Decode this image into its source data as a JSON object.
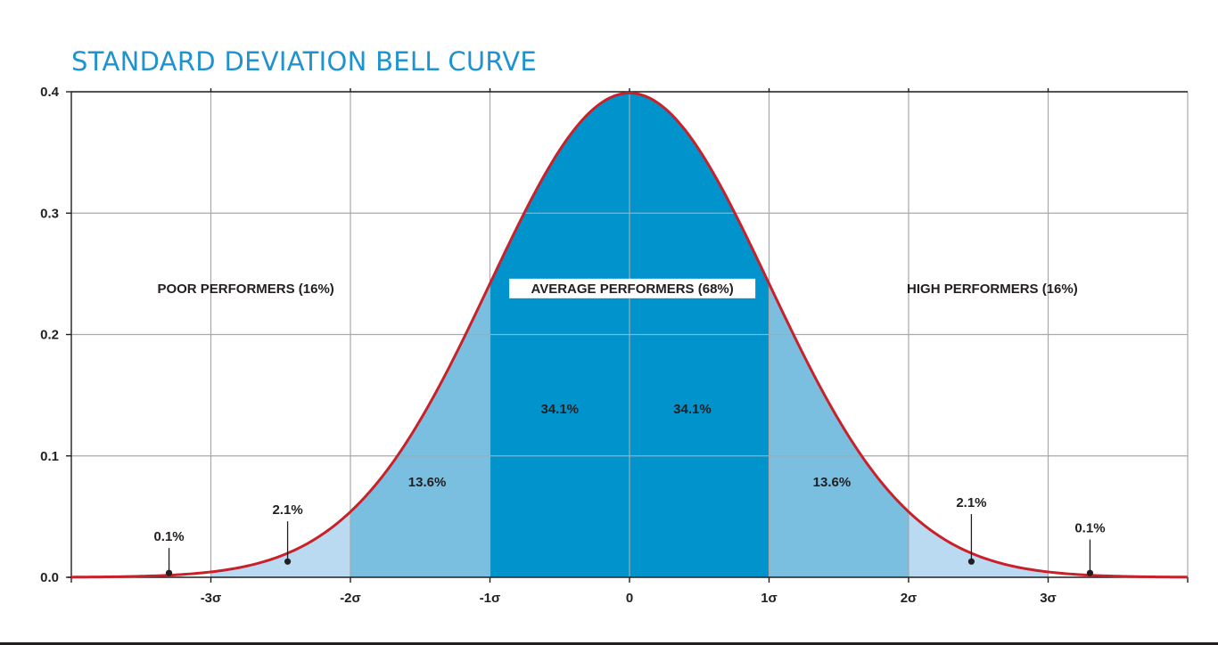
{
  "title": "STANDARD DEVIATION BELL CURVE",
  "colors": {
    "title": "#1e93cf",
    "center": "#0093cc",
    "one_to_two": "#7abee0",
    "two_to_three": "#b9daf0",
    "curve": "#c9212a",
    "grid": "#a7a9ac",
    "axis": "#231f20"
  },
  "chart_data": {
    "type": "area",
    "title": "STANDARD DEVIATION BELL CURVE",
    "xlabel": "",
    "ylabel": "",
    "distribution": "standard normal",
    "xlim": [
      -4,
      4
    ],
    "ylim": [
      0,
      0.4
    ],
    "x_ticks": [
      {
        "value": -3,
        "label": "-3σ"
      },
      {
        "value": -2,
        "label": "-2σ"
      },
      {
        "value": -1,
        "label": "-1σ"
      },
      {
        "value": 0,
        "label": "0"
      },
      {
        "value": 1,
        "label": "1σ"
      },
      {
        "value": 2,
        "label": "2σ"
      },
      {
        "value": 3,
        "label": "3σ"
      }
    ],
    "y_ticks": [
      {
        "value": 0.0,
        "label": "0.0"
      },
      {
        "value": 0.1,
        "label": "0.1"
      },
      {
        "value": 0.2,
        "label": "0.2"
      },
      {
        "value": 0.3,
        "label": "0.3"
      },
      {
        "value": 0.4,
        "label": "0.4"
      }
    ],
    "grid": true,
    "bands": [
      {
        "from": -3,
        "to": -2,
        "shade": "two_to_three"
      },
      {
        "from": -2,
        "to": -1,
        "shade": "one_to_two"
      },
      {
        "from": -1,
        "to": 1,
        "shade": "center"
      },
      {
        "from": 1,
        "to": 2,
        "shade": "one_to_two"
      },
      {
        "from": 2,
        "to": 3,
        "shade": "two_to_three"
      }
    ],
    "segment_labels": [
      {
        "label": "34.1%",
        "x": -0.5,
        "y": 0.135
      },
      {
        "label": "34.1%",
        "x": 0.45,
        "y": 0.135
      },
      {
        "label": "13.6%",
        "x": -1.45,
        "y": 0.075
      },
      {
        "label": "13.6%",
        "x": 1.45,
        "y": 0.075
      }
    ],
    "pointer_labels": [
      {
        "label": "0.1%",
        "x": -3.3,
        "y_point": 0.0035,
        "y_label": 0.03
      },
      {
        "label": "2.1%",
        "x": -2.45,
        "y_point": 0.013,
        "y_label": 0.052
      },
      {
        "label": "2.1%",
        "x": 2.45,
        "y_point": 0.013,
        "y_label": 0.058
      },
      {
        "label": "0.1%",
        "x": 3.3,
        "y_point": 0.0035,
        "y_label": 0.037
      }
    ],
    "region_labels": [
      {
        "label": "POOR PERFORMERS (16%)",
        "x": -2.75,
        "y": 0.235,
        "boxed": false
      },
      {
        "label": "AVERAGE PERFORMERS (68%)",
        "x": 0.02,
        "y": 0.235,
        "boxed": true
      },
      {
        "label": "HIGH PERFORMERS (16%)",
        "x": 2.6,
        "y": 0.235,
        "boxed": false
      }
    ]
  }
}
